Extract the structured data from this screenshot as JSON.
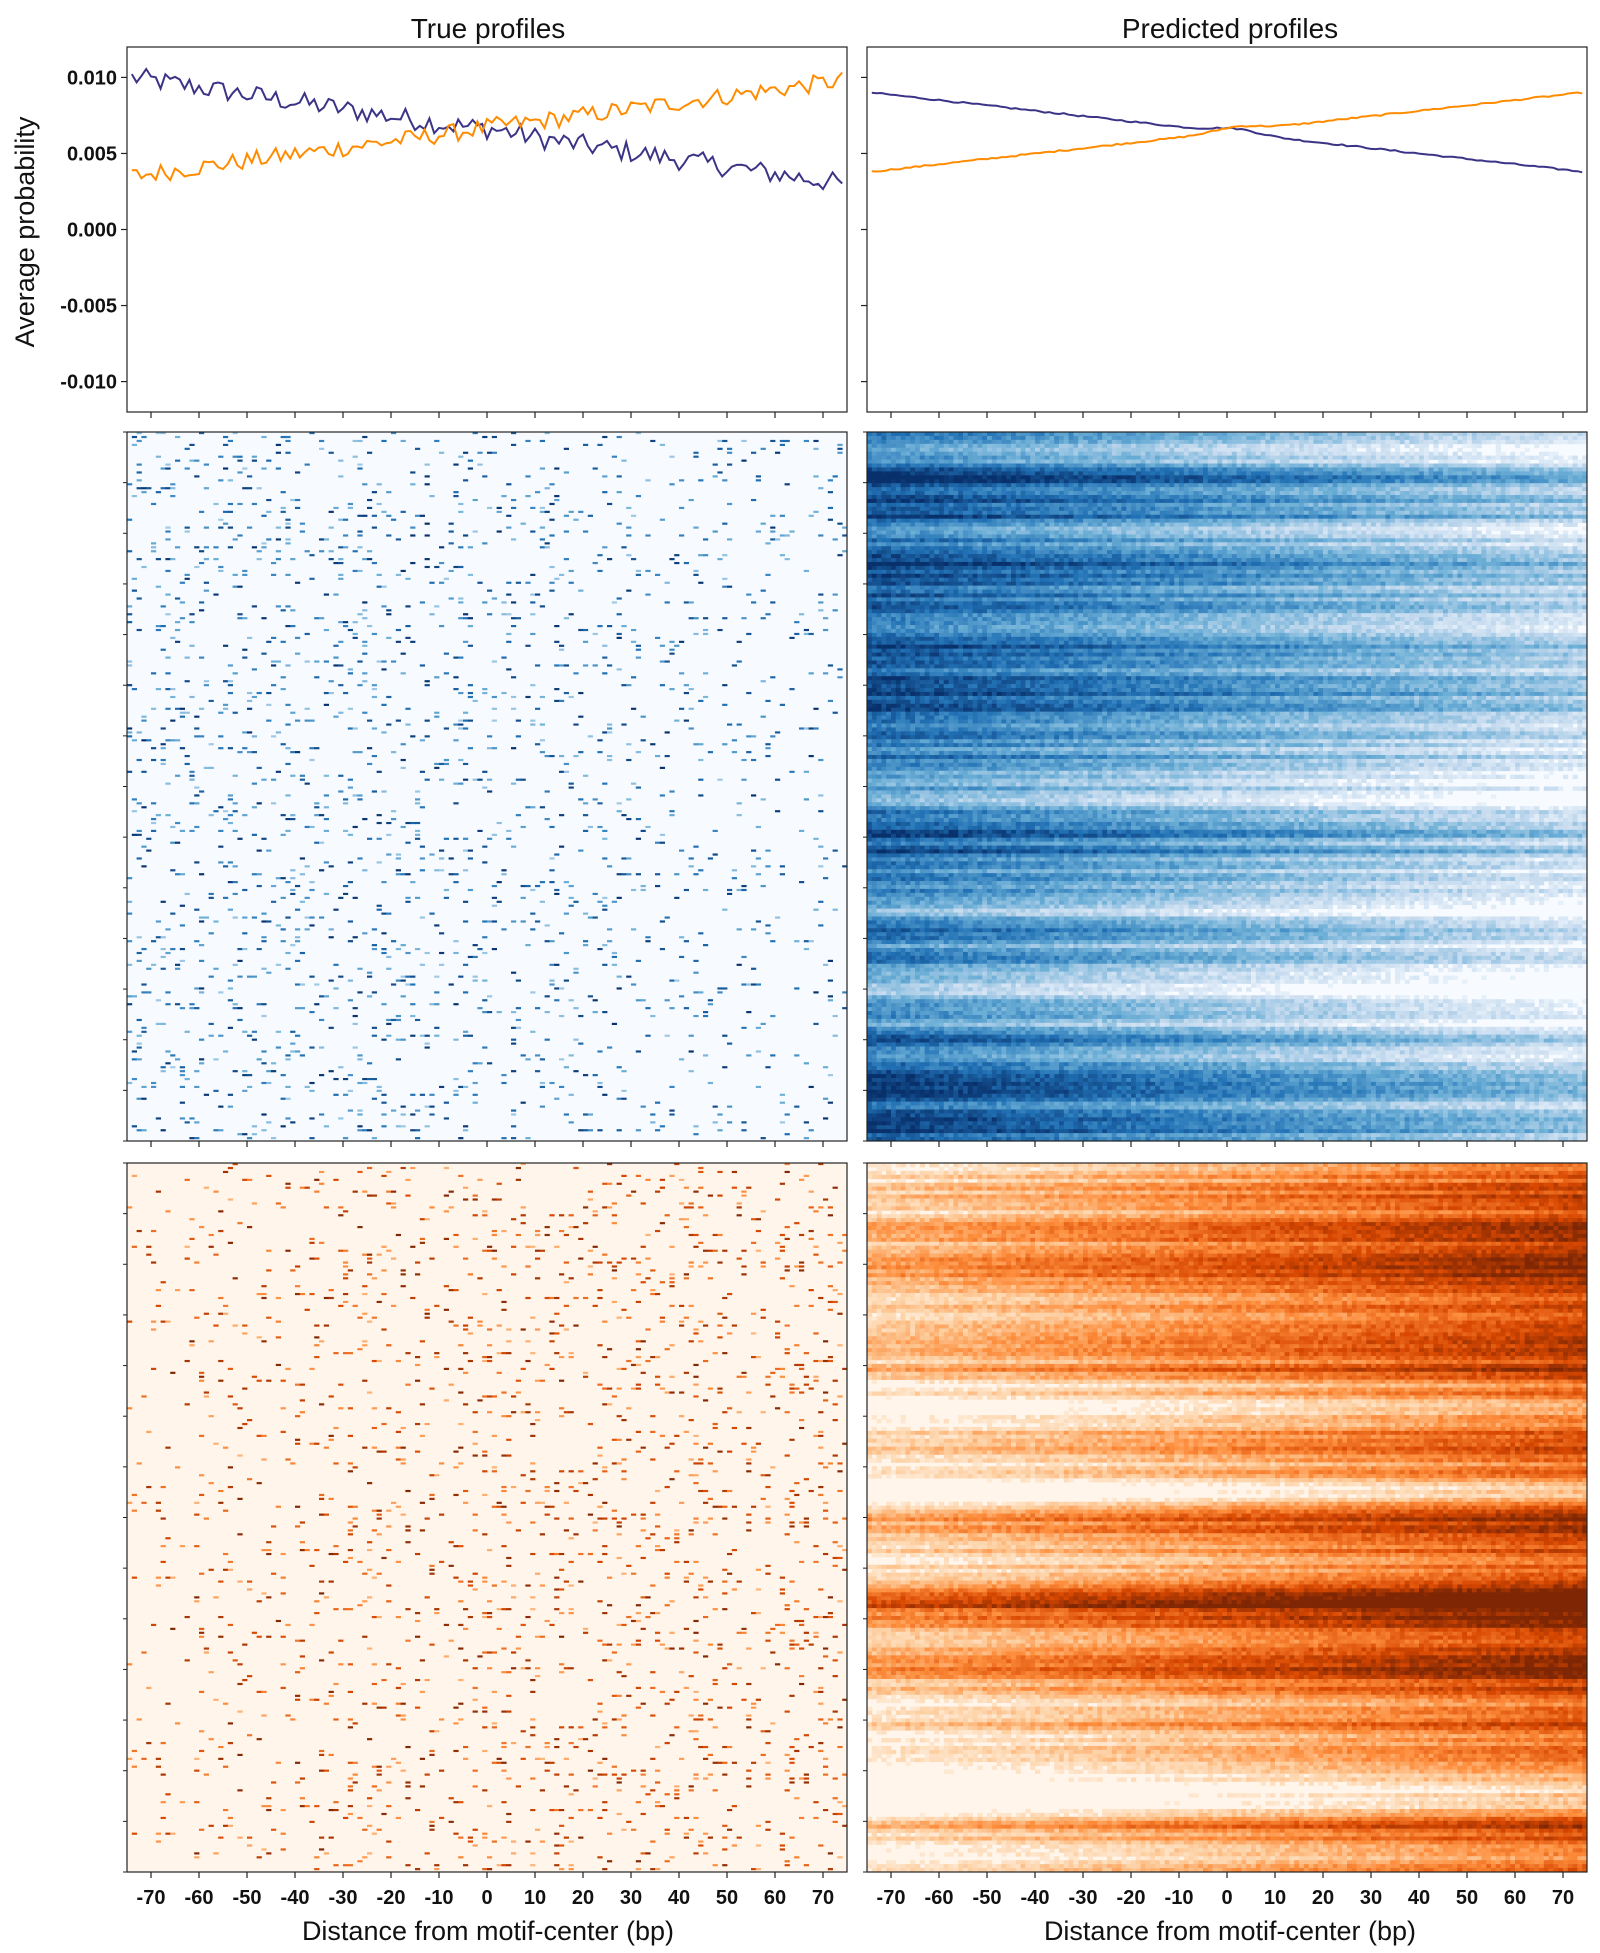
{
  "columns": {
    "left_title": "True profiles",
    "right_title": "Predicted profiles"
  },
  "axes": {
    "ylabel": "Average probability",
    "xlabel": "Distance from motif-center (bp)",
    "y_ticks": [
      "0.010",
      "0.005",
      "0.000",
      "-0.005",
      "-0.010"
    ],
    "x_ticks": [
      "-70",
      "-60",
      "-50",
      "-40",
      "-30",
      "-20",
      "-10",
      "0",
      "10",
      "20",
      "30",
      "40",
      "50",
      "60",
      "70"
    ]
  },
  "colors": {
    "series_minus": "#3b3486",
    "series_plus": "#ff8c00",
    "heat_minus_low": "#f7fbff",
    "heat_minus_high": "#08306b",
    "heat_plus_low": "#fff5eb",
    "heat_plus_high": "#7f2704"
  },
  "chart_data": [
    {
      "type": "line",
      "panel": "true-profiles-average",
      "title": "True profiles",
      "xlabel": "",
      "ylabel": "Average probability",
      "xlim": [
        -75,
        75
      ],
      "ylim": [
        -0.012,
        0.012
      ],
      "grid": false,
      "series": [
        {
          "color": "#3b3486",
          "start": 0.01,
          "end": 0.003,
          "center": 0.0068,
          "noise": 0.0007
        },
        {
          "color": "#ff8c00",
          "start": 0.0035,
          "end": 0.0098,
          "center": 0.0068,
          "noise": 0.0006
        }
      ]
    },
    {
      "type": "line",
      "panel": "predicted-profiles-average",
      "title": "Predicted profiles",
      "xlabel": "",
      "ylabel": "",
      "xlim": [
        -75,
        75
      ],
      "ylim": [
        -0.012,
        0.012
      ],
      "grid": false,
      "series": [
        {
          "color": "#3b3486",
          "start": 0.009,
          "end": 0.0038,
          "center": 0.007,
          "noise": 5e-05
        },
        {
          "color": "#ff8c00",
          "start": 0.0038,
          "end": 0.009,
          "center": 0.007,
          "noise": 5e-05
        }
      ]
    },
    {
      "type": "heatmap",
      "panel": "true-minus-strand-heatmap",
      "colormap": "Blues",
      "xlim": [
        -75,
        75
      ],
      "sparse": true,
      "trend": "higher-left"
    },
    {
      "type": "heatmap",
      "panel": "predicted-minus-strand-heatmap",
      "colormap": "Blues",
      "xlim": [
        -75,
        75
      ],
      "sparse": false,
      "trend": "higher-left"
    },
    {
      "type": "heatmap",
      "panel": "true-plus-strand-heatmap",
      "colormap": "Oranges",
      "xlim": [
        -75,
        75
      ],
      "sparse": true,
      "trend": "higher-right"
    },
    {
      "type": "heatmap",
      "panel": "predicted-plus-strand-heatmap",
      "colormap": "Oranges",
      "xlim": [
        -75,
        75
      ],
      "sparse": false,
      "trend": "higher-right"
    }
  ]
}
